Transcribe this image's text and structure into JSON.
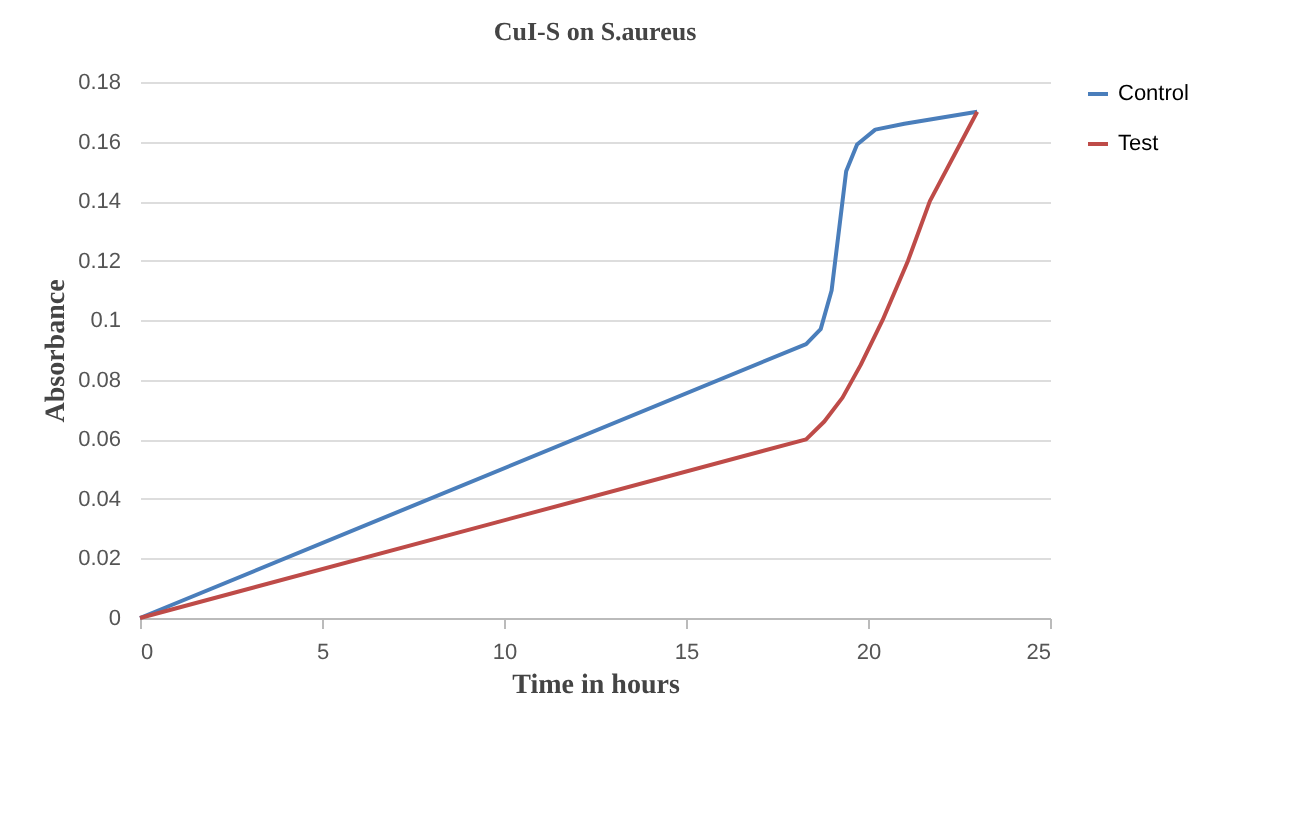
{
  "chart_data": {
    "type": "line",
    "title": "CuI-S on S.aureus",
    "xlabel": "Time in hours",
    "ylabel": "Absorbance",
    "xlim": [
      0,
      25
    ],
    "xticks": [
      0,
      5,
      10,
      15,
      20,
      25
    ],
    "ylim": [
      0,
      0.18
    ],
    "yticks": [
      0,
      0.02,
      0.04,
      0.06,
      0.08,
      0.1,
      0.12,
      0.14,
      0.16,
      0.18
    ],
    "grid": "y",
    "legend": "right",
    "marker": "none",
    "series": [
      {
        "name": "Control",
        "color": "#4a7ebb",
        "x": [
          0,
          18.3,
          18.7,
          19.0,
          19.2,
          19.4,
          19.7,
          20.2,
          21,
          23
        ],
        "values": [
          0,
          0.092,
          0.097,
          0.11,
          0.13,
          0.15,
          0.159,
          0.164,
          0.166,
          0.17
        ]
      },
      {
        "name": "Test",
        "color": "#be4b48",
        "x": [
          0,
          18.3,
          18.8,
          19.3,
          19.8,
          20.4,
          21.1,
          21.7,
          23
        ],
        "values": [
          0,
          0.06,
          0.066,
          0.074,
          0.085,
          0.1,
          0.12,
          0.14,
          0.17
        ]
      }
    ]
  }
}
